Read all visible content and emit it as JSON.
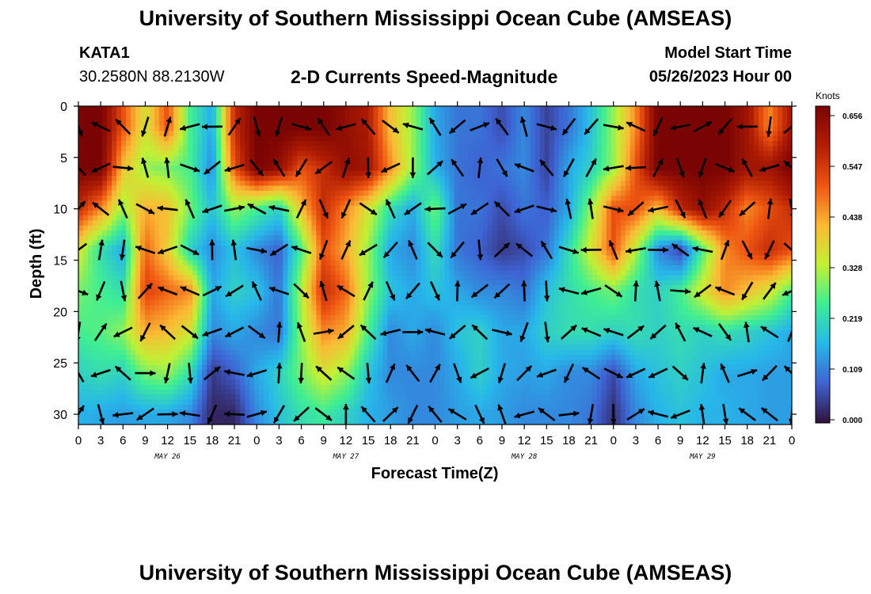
{
  "header": {
    "title": "University of Southern Mississippi Ocean Cube (AMSEAS)",
    "station": "KATA1",
    "coords": "30.2580N  88.2130W",
    "subtitle": "2-D Currents Speed-Magnitude",
    "start_label": "Model Start Time",
    "start_value": "05/26/2023 Hour 00"
  },
  "footer": {
    "title": "University of Southern Mississippi Ocean Cube (AMSEAS)"
  },
  "chart_data": {
    "type": "heatmap",
    "xlabel": "Forecast Time(Z)",
    "ylabel": "Depth (ft)",
    "x_hours": [
      0,
      3,
      6,
      9,
      12,
      15,
      18,
      21,
      24,
      27,
      30,
      33,
      36,
      39,
      42,
      45,
      48,
      51,
      54,
      57,
      60,
      63,
      66,
      69,
      72,
      75,
      78,
      81,
      84,
      87,
      90,
      93,
      96
    ],
    "x_tick_labels": [
      "0",
      "3",
      "6",
      "9",
      "12",
      "15",
      "18",
      "21",
      "0",
      "3",
      "6",
      "9",
      "12",
      "15",
      "18",
      "21",
      "0",
      "3",
      "6",
      "9",
      "12",
      "15",
      "18",
      "21",
      "0",
      "3",
      "6",
      "9",
      "12",
      "15",
      "18",
      "21",
      "0"
    ],
    "x_range_hours": [
      0,
      96
    ],
    "date_labels": [
      {
        "hour": 12,
        "text": "MAY 26"
      },
      {
        "hour": 36,
        "text": "MAY 27"
      },
      {
        "hour": 60,
        "text": "MAY 28"
      },
      {
        "hour": 84,
        "text": "MAY 29"
      }
    ],
    "y_ticks": [
      0,
      5,
      10,
      15,
      20,
      25,
      30
    ],
    "y_range_ft": [
      0,
      31
    ],
    "y_inverted": true,
    "colorbar": {
      "unit": "Knots",
      "ticks": [
        "0.656",
        "0.547",
        "0.438",
        "0.328",
        "0.219",
        "0.109",
        "0.000"
      ],
      "range": [
        0,
        0.656
      ],
      "colors": [
        "#30123b",
        "#3e62d2",
        "#27b7ea",
        "#3eee94",
        "#c2f034",
        "#fcb935",
        "#ee5511",
        "#b01d03",
        "#7a0403"
      ]
    },
    "depth_levels_ft": [
      2,
      6,
      10,
      14,
      18,
      22,
      26,
      30
    ],
    "speed_grid_knots": [
      [
        0.66,
        0.66,
        0.5,
        0.35,
        0.5,
        0.25,
        0.15,
        0.55,
        0.66,
        0.66,
        0.66,
        0.66,
        0.62,
        0.58,
        0.4,
        0.3,
        0.15,
        0.1,
        0.1,
        0.06,
        0.12,
        0.05,
        0.1,
        0.18,
        0.3,
        0.45,
        0.66,
        0.66,
        0.66,
        0.66,
        0.6,
        0.45,
        0.6
      ],
      [
        0.66,
        0.66,
        0.4,
        0.3,
        0.28,
        0.25,
        0.12,
        0.5,
        0.66,
        0.62,
        0.5,
        0.55,
        0.62,
        0.6,
        0.45,
        0.3,
        0.16,
        0.1,
        0.08,
        0.1,
        0.12,
        0.05,
        0.15,
        0.2,
        0.3,
        0.5,
        0.66,
        0.66,
        0.66,
        0.66,
        0.6,
        0.6,
        0.66
      ],
      [
        0.55,
        0.45,
        0.3,
        0.42,
        0.4,
        0.28,
        0.18,
        0.3,
        0.25,
        0.2,
        0.4,
        0.55,
        0.45,
        0.35,
        0.22,
        0.15,
        0.28,
        0.1,
        0.1,
        0.06,
        0.1,
        0.08,
        0.15,
        0.3,
        0.5,
        0.5,
        0.4,
        0.55,
        0.62,
        0.55,
        0.45,
        0.5,
        0.55
      ],
      [
        0.35,
        0.22,
        0.15,
        0.48,
        0.38,
        0.2,
        0.12,
        0.18,
        0.12,
        0.08,
        0.25,
        0.5,
        0.42,
        0.3,
        0.15,
        0.12,
        0.22,
        0.1,
        0.08,
        0.04,
        0.06,
        0.1,
        0.22,
        0.35,
        0.5,
        0.32,
        0.12,
        0.05,
        0.25,
        0.45,
        0.5,
        0.55,
        0.5
      ],
      [
        0.28,
        0.25,
        0.22,
        0.52,
        0.48,
        0.45,
        0.15,
        0.2,
        0.18,
        0.1,
        0.32,
        0.55,
        0.48,
        0.3,
        0.18,
        0.15,
        0.18,
        0.15,
        0.12,
        0.12,
        0.1,
        0.18,
        0.22,
        0.25,
        0.28,
        0.22,
        0.2,
        0.25,
        0.35,
        0.45,
        0.4,
        0.35,
        0.25
      ],
      [
        0.25,
        0.26,
        0.3,
        0.42,
        0.4,
        0.35,
        0.12,
        0.15,
        0.12,
        0.1,
        0.3,
        0.45,
        0.42,
        0.25,
        0.12,
        0.15,
        0.12,
        0.18,
        0.2,
        0.15,
        0.15,
        0.2,
        0.22,
        0.22,
        0.2,
        0.22,
        0.2,
        0.22,
        0.2,
        0.22,
        0.2,
        0.18,
        0.15
      ],
      [
        0.2,
        0.22,
        0.2,
        0.28,
        0.3,
        0.22,
        0.04,
        0.08,
        0.15,
        0.2,
        0.28,
        0.35,
        0.3,
        0.18,
        0.12,
        0.12,
        0.12,
        0.15,
        0.2,
        0.15,
        0.14,
        0.15,
        0.12,
        0.12,
        0.06,
        0.15,
        0.18,
        0.2,
        0.18,
        0.15,
        0.15,
        0.14,
        0.14
      ],
      [
        0.16,
        0.15,
        0.14,
        0.15,
        0.15,
        0.12,
        0.02,
        0.02,
        0.12,
        0.18,
        0.22,
        0.24,
        0.2,
        0.16,
        0.14,
        0.12,
        0.12,
        0.14,
        0.15,
        0.14,
        0.12,
        0.12,
        0.12,
        0.1,
        0.03,
        0.12,
        0.16,
        0.18,
        0.16,
        0.16,
        0.15,
        0.14,
        0.14
      ]
    ]
  }
}
